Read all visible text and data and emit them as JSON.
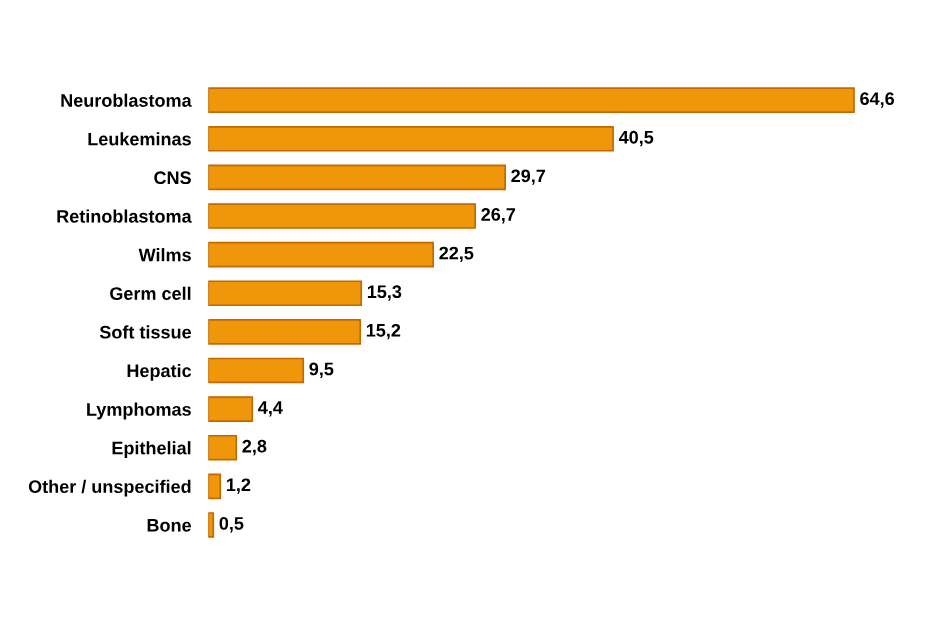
{
  "chart_data": {
    "type": "bar",
    "orientation": "horizontal",
    "categories": [
      "Neuroblastoma",
      "Leukeminas",
      "CNS",
      "Retinoblastoma",
      "Wilms",
      "Germ cell",
      "Soft tissue",
      "Hepatic",
      "Lymphomas",
      "Epithelial",
      "Other / unspecified",
      "Bone"
    ],
    "values": [
      64.6,
      40.5,
      29.7,
      26.7,
      22.5,
      15.3,
      15.2,
      9.5,
      4.4,
      2.8,
      1.2,
      0.5
    ],
    "value_labels": [
      "64,6",
      "40,5",
      "29,7",
      "26,7",
      "22,5",
      "15,3",
      "15,2",
      "9,5",
      "4,4",
      "2,8",
      "1,2",
      "0,5"
    ],
    "color": "#f0960a",
    "grid": false,
    "legend": false
  }
}
